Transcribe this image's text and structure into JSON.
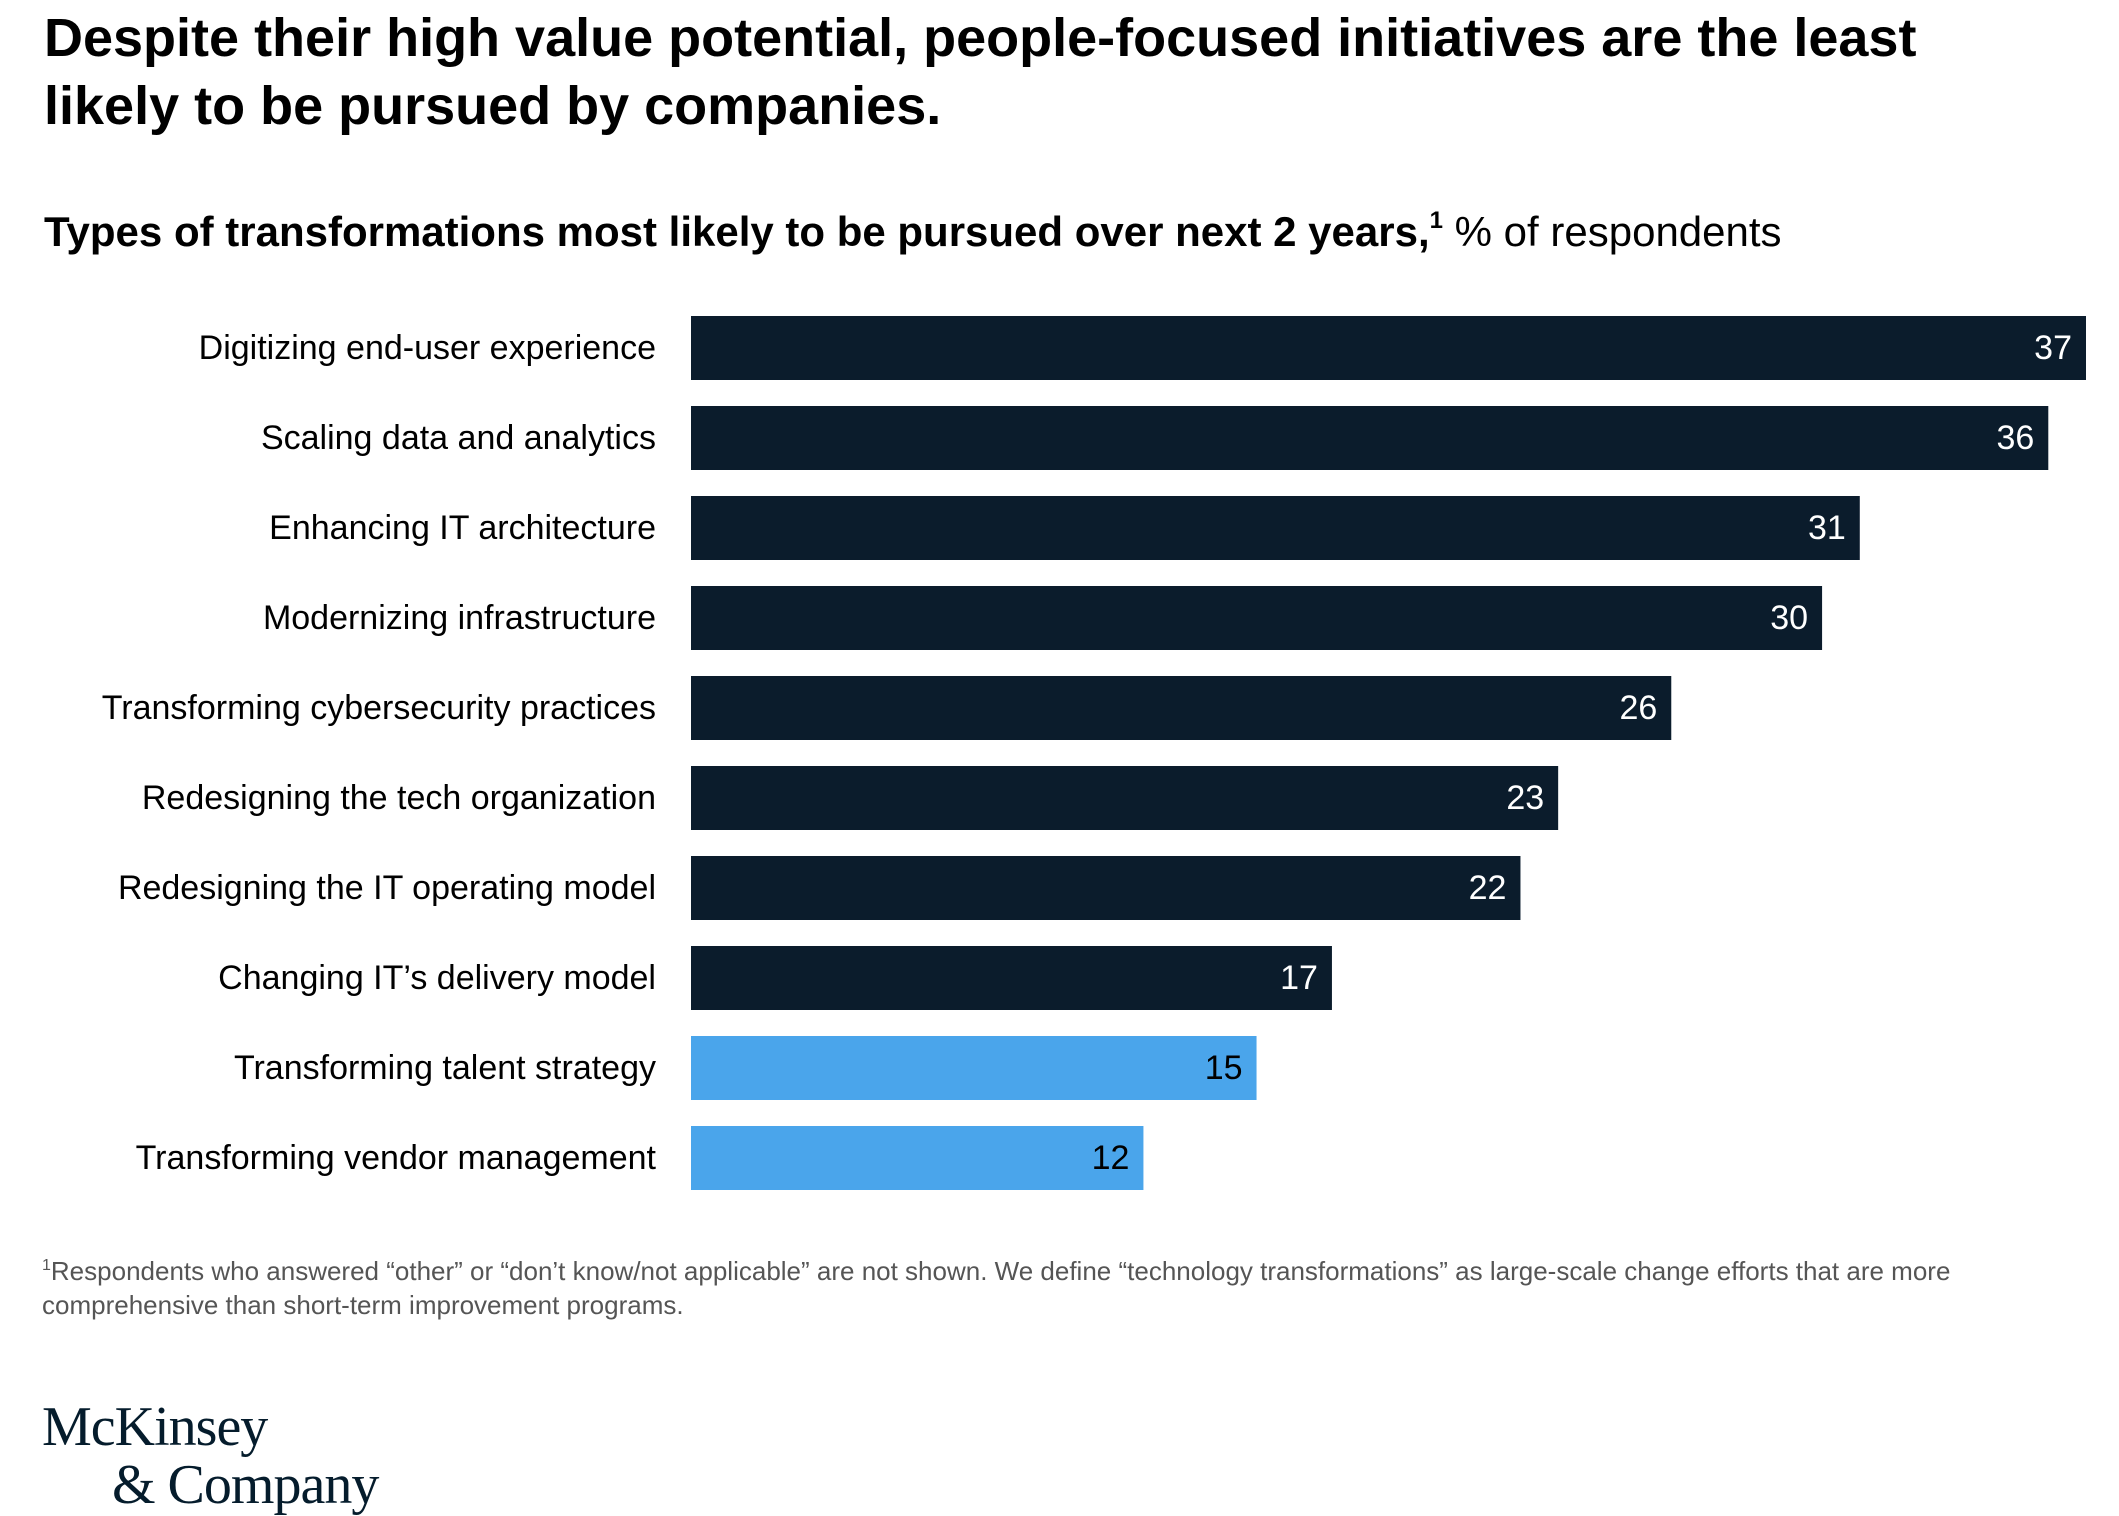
{
  "headline": "Despite their high value potential, people-focused initiatives are the least likely to be pursued by companies.",
  "subtitle": {
    "bold": "Types of transformations most likely to be pursued over next 2 years,",
    "footnote_mark": "1",
    "unit": " % of respondents"
  },
  "footnote": {
    "mark": "1",
    "text": "Respondents who answered “other” or “don’t know/not applicable” are not shown. We define “technology transformations” as large-scale change efforts that are more comprehensive than short-term improvement programs."
  },
  "logo": {
    "line1": "McKinsey",
    "line2": "& Company"
  },
  "colors": {
    "dark_bar": "#0b1c2c",
    "highlight_bar": "#4aa5eb",
    "dark_bar_label": "#ffffff",
    "highlight_bar_label": "#000000"
  },
  "chart_data": {
    "type": "bar",
    "orientation": "horizontal",
    "categories": [
      "Digitizing end-user experience",
      "Scaling data and analytics",
      "Enhancing IT architecture",
      "Modernizing infrastructure",
      "Transforming cybersecurity practices",
      "Redesigning the tech organization",
      "Redesigning the IT operating model",
      "Changing IT’s delivery model",
      "Transforming talent strategy",
      "Transforming vendor management"
    ],
    "values": [
      37,
      36,
      31,
      30,
      26,
      23,
      22,
      17,
      15,
      12
    ],
    "highlighted": [
      false,
      false,
      false,
      false,
      false,
      false,
      false,
      false,
      true,
      true
    ],
    "xlim": [
      0,
      37
    ],
    "grid": false,
    "legend": "none"
  }
}
